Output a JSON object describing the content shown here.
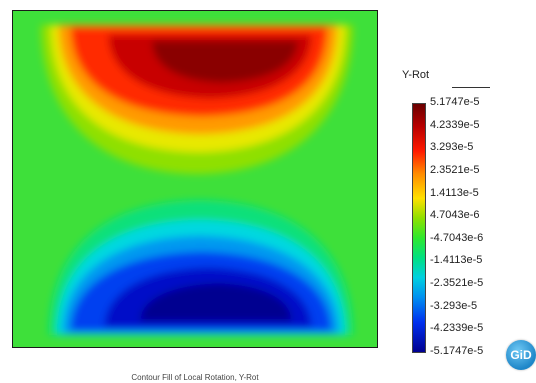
{
  "legend": {
    "title": "Y-Rot",
    "ticks": [
      "5.1747e-5",
      "4.2339e-5",
      "3.293e-5",
      "2.3521e-5",
      "1.4113e-5",
      "4.7043e-6",
      "-4.7043e-6",
      "-1.4113e-5",
      "-2.3521e-5",
      "-3.293e-5",
      "-4.2339e-5",
      "-5.1747e-5"
    ]
  },
  "caption": "Contour Fill of Local Rotation, Y-Rot",
  "logo": {
    "text": "GiD"
  },
  "colors": {
    "max": "#6a0000",
    "min": "#000090",
    "zero": "#3ee03a"
  }
}
